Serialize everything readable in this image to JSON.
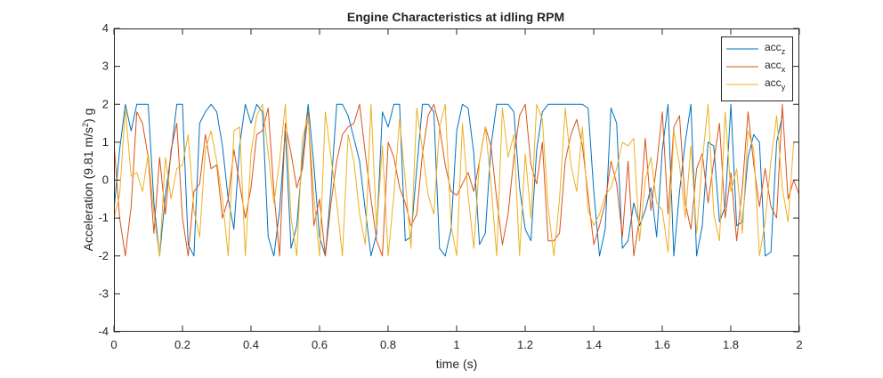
{
  "chart_data": {
    "type": "line",
    "title": "Engine Characteristics at idling RPM",
    "xlabel": "time (s)",
    "ylabel_parts": {
      "prefix": "Acceleration (9.81 m/s",
      "superscript": "2",
      "suffix": ") g"
    },
    "xlim": [
      0,
      2
    ],
    "ylim": [
      -4,
      4
    ],
    "xticks": [
      "0",
      "0.2",
      "0.4",
      "0.6",
      "0.8",
      "1",
      "1.2",
      "1.4",
      "1.6",
      "1.8",
      "2"
    ],
    "xtick_values": [
      0,
      0.2,
      0.4,
      0.6,
      0.8,
      1.0,
      1.2,
      1.4,
      1.6,
      1.8,
      2.0
    ],
    "yticks": [
      "4",
      "3",
      "2",
      "1",
      "0",
      "-1",
      "-2",
      "-3",
      "-4"
    ],
    "ytick_values": [
      4,
      3,
      2,
      1,
      0,
      -1,
      -2,
      -3,
      -4
    ],
    "grid": false,
    "legend_position": "top-right",
    "x_start": 0,
    "x_step": 0.01667,
    "series": [
      {
        "name_base": "acc",
        "name_sub": "z",
        "color": "#0072BD",
        "values": [
          -0.8,
          0.8,
          2.0,
          1.3,
          2.0,
          2.0,
          2.0,
          -0.6,
          -2.0,
          -0.4,
          0.7,
          2.0,
          2.0,
          -1.7,
          -2.0,
          1.5,
          1.8,
          2.0,
          1.8,
          0.9,
          -0.5,
          -1.3,
          0.9,
          2.0,
          1.5,
          2.0,
          1.8,
          -1.5,
          -2.0,
          -0.8,
          1.3,
          -1.8,
          -1.2,
          0.6,
          2.0,
          0.4,
          -1.5,
          -2.0,
          -0.2,
          2.0,
          2.0,
          1.7,
          1.1,
          0.5,
          -0.8,
          -2.0,
          -1.4,
          1.8,
          1.4,
          2.0,
          2.0,
          -1.6,
          -1.5,
          0.3,
          2.0,
          2.0,
          1.8,
          -1.8,
          -2.0,
          -1.3,
          1.3,
          2.0,
          1.9,
          0.7,
          -1.7,
          -1.4,
          0.9,
          2.0,
          2.0,
          2.0,
          1.8,
          -0.2,
          -1.3,
          -1.6,
          0.8,
          1.8,
          2.0,
          2.0,
          2.0,
          2.0,
          2.0,
          2.0,
          2.0,
          1.9,
          -0.3,
          -2.0,
          -1.3,
          1.9,
          1.5,
          -1.8,
          -1.6,
          -0.6,
          -1.2,
          -0.8,
          -0.2,
          -1.5,
          0.8,
          2.0,
          -2.0,
          -0.3,
          1.0,
          2.0,
          -2.0,
          -1.2,
          1.0,
          0.9,
          -1.1,
          -0.7,
          2.0,
          -1.2,
          -1.1,
          0.6,
          1.2,
          1.0,
          -2.0,
          -1.9,
          1.0,
          1.7
        ]
      },
      {
        "name_base": "acc",
        "name_sub": "x",
        "color": "#D95319",
        "values": [
          1.0,
          -1.0,
          -2.0,
          -0.7,
          1.8,
          1.5,
          0.6,
          -1.4,
          0.6,
          -0.9,
          0.8,
          1.5,
          -1.0,
          -2.0,
          -0.3,
          -0.1,
          1.2,
          0.3,
          0.4,
          -1.0,
          -0.5,
          0.8,
          -0.1,
          -1.0,
          -0.2,
          1.2,
          1.3,
          1.9,
          -0.3,
          -2.0,
          1.5,
          0.7,
          -0.2,
          0.3,
          1.8,
          -1.2,
          -0.5,
          -2.0,
          -0.6,
          0.5,
          1.2,
          1.4,
          1.5,
          2.0,
          0.7,
          -0.5,
          -1.6,
          -2.0,
          1.0,
          0.6,
          -0.2,
          -0.6,
          -1.2,
          -0.9,
          0.7,
          1.7,
          2.0,
          1.4,
          0.4,
          -0.3,
          -0.4,
          -0.1,
          0.2,
          -0.3,
          0.5,
          1.4,
          0.9,
          -0.5,
          -1.7,
          -0.9,
          0.6,
          1.7,
          2.0,
          0.4,
          -0.1,
          1.0,
          -1.6,
          -1.6,
          -1.4,
          0.5,
          1.2,
          1.6,
          0.9,
          -0.4,
          -1.7,
          -1.2,
          -0.6,
          0.5,
          -0.1,
          -1.5,
          0.5,
          -2.0,
          -1.0,
          1.1,
          -0.8,
          0.4,
          1.8,
          -0.9,
          1.4,
          1.7,
          -0.6,
          -1.3,
          0.3,
          0.7,
          -0.6,
          0.5,
          1.5,
          -1.0,
          0.2,
          -1.6,
          -0.2,
          1.8,
          0.4,
          -0.7,
          0.3,
          -0.7,
          -1.0,
          2.0,
          -0.5,
          0.0,
          -0.4
        ]
      },
      {
        "name_base": "acc",
        "name_sub": "y",
        "color": "#EDB120",
        "values": [
          -1.0,
          -0.4,
          1.9,
          0.1,
          0.2,
          -0.3,
          0.7,
          -0.9,
          -2.0,
          0.6,
          -0.5,
          0.3,
          0.4,
          1.2,
          -0.8,
          -1.5,
          0.8,
          1.3,
          0.5,
          -0.5,
          -2.0,
          1.3,
          1.4,
          -2.0,
          0.7,
          1.7,
          2.0,
          0.7,
          -0.6,
          0.5,
          2.0,
          -1.0,
          -2.0,
          1.1,
          1.7,
          -0.4,
          -2.0,
          1.8,
          0.6,
          -0.6,
          -2.0,
          1.2,
          0.5,
          -0.9,
          -1.7,
          2.0,
          -1.3,
          0.9,
          -2.0,
          -0.4,
          1.6,
          0.0,
          -1.8,
          1.9,
          0.8,
          -0.4,
          -0.9,
          1.4,
          2.0,
          -1.2,
          -2.0,
          1.5,
          -0.4,
          -1.8,
          0.5,
          1.4,
          -0.1,
          -2.0,
          1.9,
          0.6,
          1.2,
          -2.0,
          0.7,
          -1.0,
          2.0,
          1.6,
          -0.7,
          -2.0,
          -0.5,
          1.9,
          0.4,
          -0.3,
          1.4,
          -0.8,
          -1.2,
          -0.9,
          -0.4,
          -0.2,
          0.3,
          1.0,
          0.9,
          1.1,
          -1.6,
          0.0,
          0.6,
          -0.6,
          -0.8,
          -1.9,
          1.3,
          0.4,
          -1.0,
          0.9,
          -1.4,
          0.5,
          2.0,
          -0.9,
          -1.6,
          1.8,
          -0.3,
          0.3,
          -1.4,
          1.3,
          0.8,
          -2.0,
          -1.1,
          0.5,
          1.7,
          -0.2,
          -1.1,
          1.0
        ]
      }
    ]
  }
}
